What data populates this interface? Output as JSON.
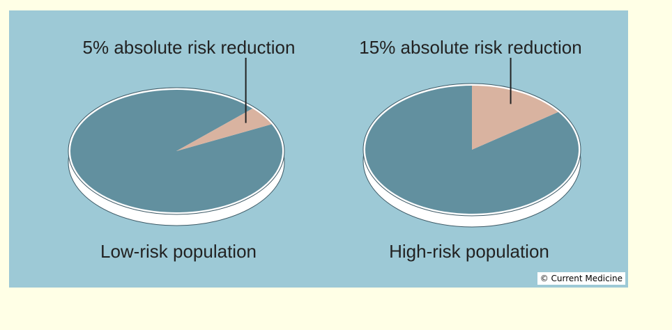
{
  "chart_data": [
    {
      "type": "pie",
      "title": "",
      "slices": [
        {
          "label": "5% absolute risk reduction",
          "value": 5
        },
        {
          "label": "",
          "value": 95
        }
      ],
      "caption": "Low-risk population"
    },
    {
      "type": "pie",
      "title": "",
      "slices": [
        {
          "label": "15% absolute risk reduction",
          "value": 15
        },
        {
          "label": "",
          "value": 85
        }
      ],
      "caption": "High-risk population"
    }
  ],
  "colors": {
    "panel_background": "#9dc9d6",
    "pie_main": "#62909f",
    "pie_highlight": "#d9b3a0",
    "pie_rim": "#ffffff",
    "page_background": "#ffffe6"
  },
  "credit": "© Current Medicine"
}
